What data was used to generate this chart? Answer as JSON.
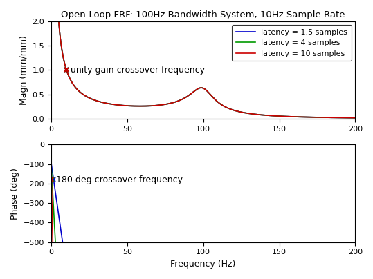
{
  "title": "Open-Loop FRF: 100Hz Bandwidth System, 10Hz Sample Rate",
  "freq_range": [
    0,
    200
  ],
  "bandwidth": 100,
  "sample_rate": 10,
  "latencies": [
    1.5,
    4,
    10
  ],
  "colors": [
    "#0000cc",
    "#009900",
    "#cc0000"
  ],
  "labels": [
    "latency = 1.5 samples",
    "latency = 4 samples",
    "latency = 10 samples"
  ],
  "mag_ylabel": "Magn (mm/mm)",
  "phase_ylabel": "Phase (deg)",
  "xlabel": "Frequency (Hz)",
  "mag_ylim": [
    0,
    2
  ],
  "phase_ylim": [
    -500,
    0
  ],
  "mag_yticks": [
    0,
    0.5,
    1,
    1.5,
    2
  ],
  "phase_yticks": [
    -500,
    -400,
    -300,
    -200,
    -100,
    0
  ],
  "xticks": [
    0,
    50,
    100,
    150,
    200
  ],
  "unity_gain_annotation": "unity gain crossover frequency",
  "phase_annotation": "180 deg crossover frequency",
  "annotation_fontsize": 9
}
